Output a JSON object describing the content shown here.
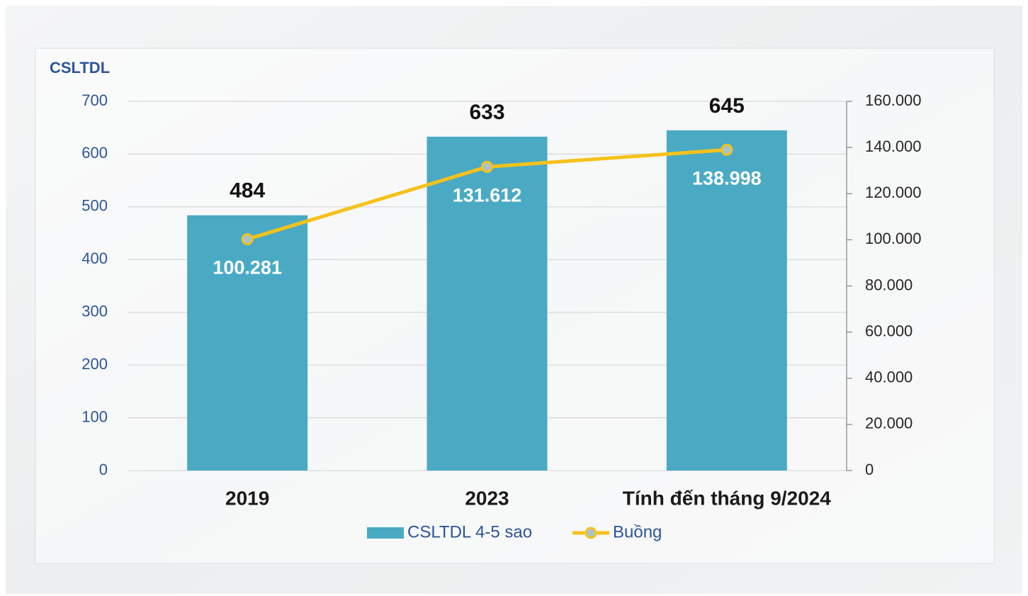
{
  "chart_data": {
    "type": "combo",
    "y_label": "CSLTDL",
    "categories": [
      "2019",
      "2023",
      "Tính đến tháng 9/2024"
    ],
    "series": [
      {
        "name": "CSLTDL 4-5 sao",
        "type": "bar",
        "color": "#4aaac4",
        "values": [
          484,
          633,
          645
        ]
      },
      {
        "name": "Buồng",
        "type": "line",
        "axis": "y2",
        "color": "#f5c21b",
        "values": [
          100281,
          131612,
          138998
        ],
        "value_labels": [
          "100.281",
          "131.612",
          "138.998"
        ]
      }
    ],
    "ylim": [
      0,
      700
    ],
    "yticks": [
      0,
      100,
      200,
      300,
      400,
      500,
      600,
      700
    ],
    "y2lim": [
      0,
      160000
    ],
    "y2ticks": [
      0,
      {
        "value": 20000,
        "label": "20.000"
      },
      {
        "value": 40000,
        "label": "40.000"
      },
      {
        "value": 60000,
        "label": "60.000"
      },
      {
        "value": 80000,
        "label": "80.000"
      },
      {
        "value": 100000,
        "label": "100.000"
      },
      {
        "value": 120000,
        "label": "120.000"
      },
      {
        "value": 140000,
        "label": "140.000"
      },
      {
        "value": 160000,
        "label": "160.000"
      }
    ],
    "grid": true,
    "legend": "bottom"
  }
}
